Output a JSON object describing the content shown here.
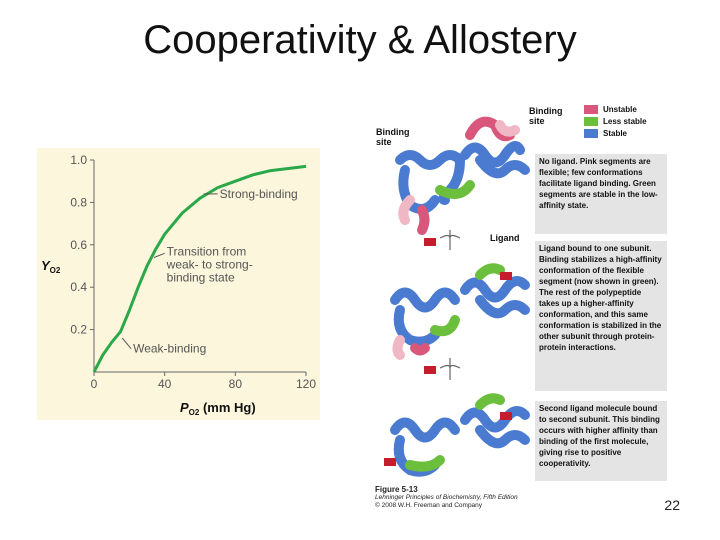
{
  "slide": {
    "title": "Cooperativity & Allostery",
    "page_number": "22"
  },
  "figure": {
    "legend": [
      {
        "label": "Unstable",
        "color": "#d9577a"
      },
      {
        "label": "Less stable",
        "color": "#6cbf3c"
      },
      {
        "label": "Stable",
        "color": "#4a7bd0"
      }
    ],
    "binding_site_left": "Binding site",
    "binding_site_right": "Binding site",
    "ligand_label": "Ligand",
    "panels": [
      "No ligand. Pink segments are flexible; few conformations facilitate ligand binding. Green segments are stable in the low-affinity state.",
      "Ligand bound to one subunit. Binding stabilizes a high-affinity conformation of the flexible segment (now shown in green). The rest of the polypeptide takes up a higher-affinity conformation, and this same conformation is stabilized in the other subunit through protein-protein interactions.",
      "Second ligand molecule bound to second subunit. This binding occurs with higher affinity than binding of the first molecule, giving rise to positive cooperativity."
    ],
    "caption": {
      "figure": "Figure 5-13",
      "book": "Lehninger Principles of Biochemistry, Fifth Edition",
      "copyright": "© 2008 W.H. Freeman and Company"
    }
  },
  "chart_data": {
    "type": "line",
    "xlabel": "P",
    "xlabel_sub": "O2",
    "xlabel_unit": "(mm Hg)",
    "ylabel": "Y",
    "ylabel_sub": "O2",
    "xlim": [
      0,
      120
    ],
    "ylim": [
      0,
      1.0
    ],
    "x_ticks": [
      "0",
      "40",
      "80",
      "120"
    ],
    "y_ticks": [
      "0.2",
      "0.4",
      "0.6",
      "0.8",
      "1.0"
    ],
    "series": [
      {
        "color": "#2aa84a",
        "x": [
          0,
          5,
          10,
          15,
          20,
          25,
          30,
          35,
          40,
          50,
          60,
          70,
          80,
          90,
          100,
          110,
          120
        ],
        "y": [
          0,
          0.08,
          0.14,
          0.19,
          0.29,
          0.4,
          0.5,
          0.58,
          0.65,
          0.75,
          0.82,
          0.87,
          0.9,
          0.93,
          0.95,
          0.96,
          0.97
        ]
      }
    ],
    "annotations": [
      {
        "text": "Strong-binding"
      },
      {
        "text": "Transition from weak- to strong-binding state"
      },
      {
        "text": "Weak-binding"
      }
    ]
  }
}
